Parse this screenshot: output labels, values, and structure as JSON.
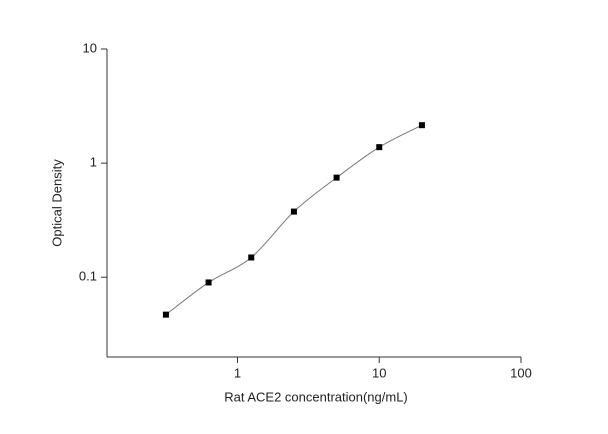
{
  "chart_data": {
    "type": "scatter",
    "xlabel": "Rat ACE2 concentration(ng/mL)",
    "ylabel": "Optical Density",
    "xscale": "log",
    "yscale": "log",
    "xlim": [
      0.12,
      100
    ],
    "ylim": [
      0.02,
      10
    ],
    "xticks": [
      1,
      10,
      100
    ],
    "yticks": [
      0.1,
      1,
      10
    ],
    "fit_color": "#777777",
    "series": [
      {
        "color": "#000000",
        "x": [
          0.3125,
          0.625,
          1.25,
          2.5,
          5,
          10,
          20
        ],
        "values": [
          0.047,
          0.09,
          0.149,
          0.376,
          0.746,
          1.38,
          2.15
        ]
      }
    ]
  }
}
